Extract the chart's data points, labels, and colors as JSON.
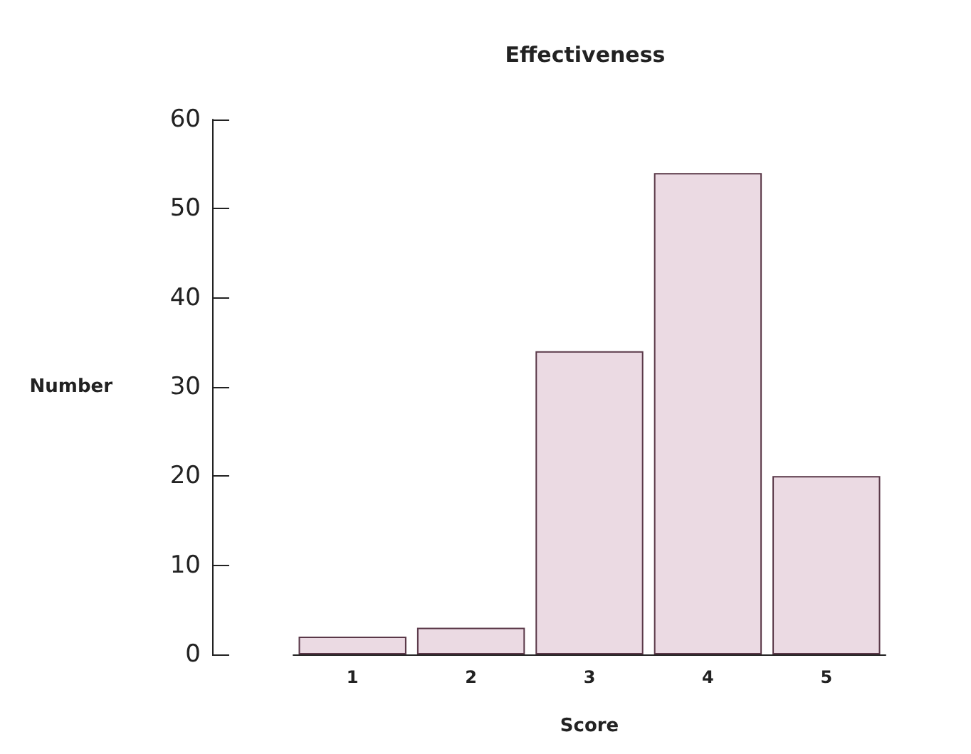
{
  "chart_data": {
    "type": "bar",
    "title": "Effectiveness",
    "xlabel": "Score",
    "ylabel": "Number",
    "categories": [
      "1",
      "2",
      "3",
      "4",
      "5"
    ],
    "values": [
      2,
      3,
      34,
      54,
      20
    ],
    "color": "#ebdae3",
    "ylim": [
      0,
      60
    ],
    "yticks": [
      0,
      10,
      20,
      30,
      40,
      50,
      60
    ],
    "grid": false
  }
}
